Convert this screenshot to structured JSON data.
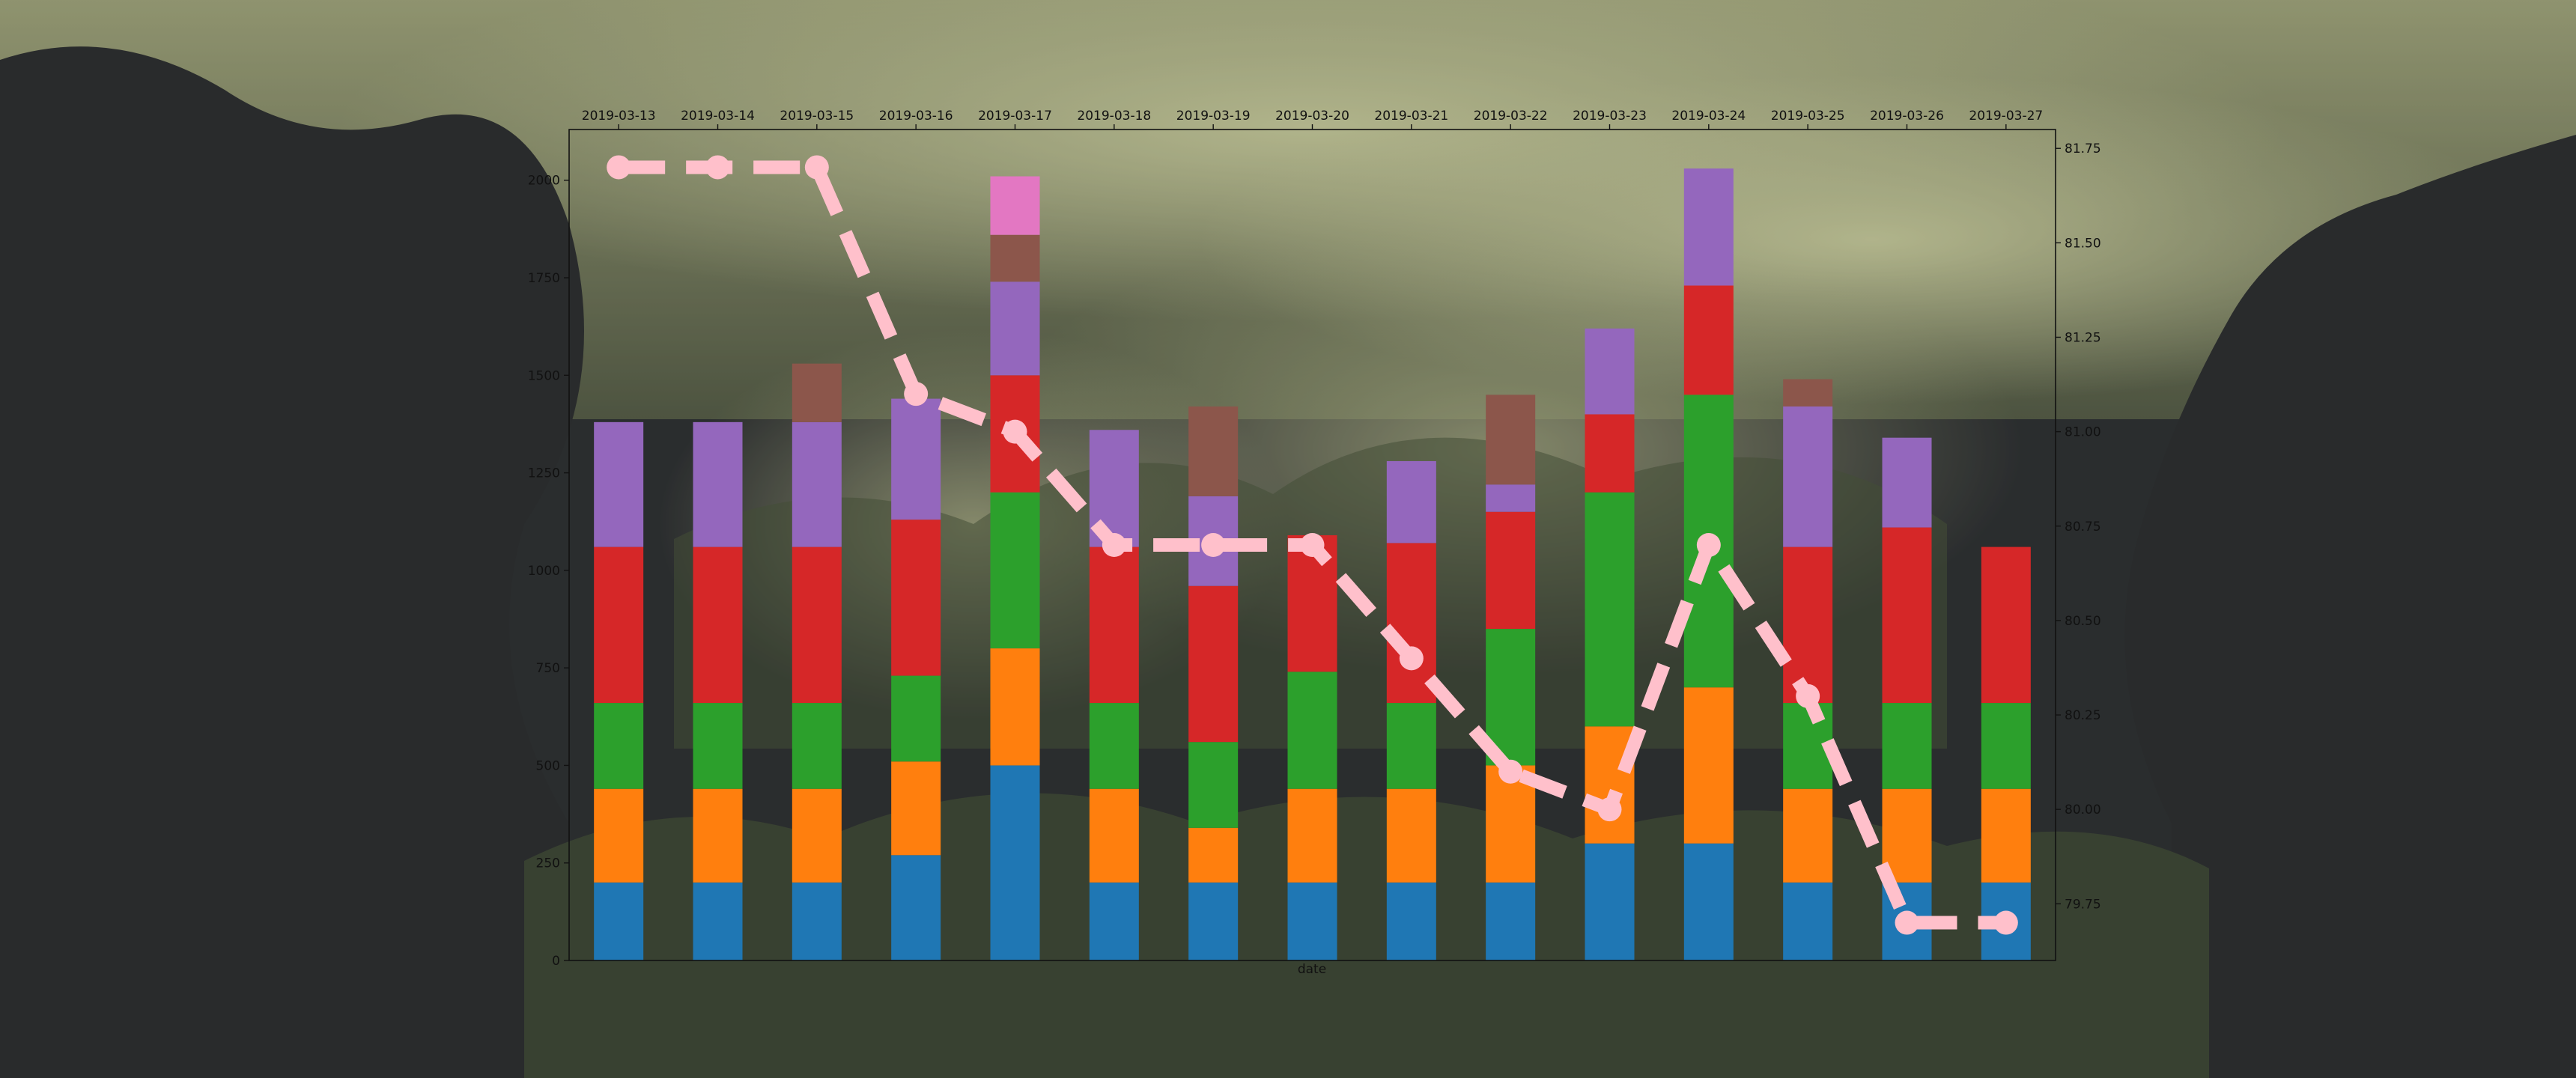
{
  "chart_data": {
    "type": "bar",
    "stacked": true,
    "xlabel": "date",
    "categories": [
      "2019-03-13",
      "2019-03-14",
      "2019-03-15",
      "2019-03-16",
      "2019-03-17",
      "2019-03-18",
      "2019-03-19",
      "2019-03-20",
      "2019-03-21",
      "2019-03-22",
      "2019-03-23",
      "2019-03-24",
      "2019-03-25",
      "2019-03-26",
      "2019-03-27"
    ],
    "ylim": [
      0,
      2130
    ],
    "y_ticks": [
      "0",
      "250",
      "500",
      "750",
      "1000",
      "1250",
      "1500",
      "1750",
      "2000"
    ],
    "series": [
      {
        "color": "#1f77b4",
        "values": [
          200,
          200,
          200,
          270,
          500,
          200,
          200,
          200,
          200,
          200,
          300,
          300,
          200,
          200,
          200
        ]
      },
      {
        "color": "#ff7f0e",
        "values": [
          240,
          240,
          240,
          240,
          300,
          240,
          140,
          240,
          240,
          300,
          300,
          400,
          240,
          240,
          240
        ]
      },
      {
        "color": "#2ca02c",
        "values": [
          220,
          220,
          220,
          220,
          400,
          220,
          220,
          300,
          220,
          350,
          600,
          750,
          220,
          220,
          220
        ]
      },
      {
        "color": "#d62728",
        "values": [
          400,
          400,
          400,
          400,
          300,
          400,
          400,
          350,
          410,
          300,
          200,
          280,
          400,
          450,
          400
        ]
      },
      {
        "color": "#9467bd",
        "values": [
          320,
          320,
          320,
          310,
          240,
          300,
          230,
          0,
          210,
          70,
          220,
          300,
          360,
          230,
          0
        ]
      },
      {
        "color": "#8c564b",
        "values": [
          0,
          0,
          150,
          0,
          120,
          0,
          230,
          0,
          0,
          230,
          0,
          0,
          70,
          0,
          0
        ]
      },
      {
        "color": "#e377c2",
        "values": [
          0,
          0,
          0,
          0,
          150,
          0,
          0,
          0,
          0,
          0,
          0,
          0,
          0,
          0,
          0
        ]
      }
    ],
    "secondary_y": {
      "type": "line",
      "style": "dashed",
      "marker": "circle",
      "color": "#ffc0cb",
      "ylim": [
        79.6,
        81.8
      ],
      "y_ticks": [
        "79.75",
        "80.00",
        "80.25",
        "80.50",
        "80.75",
        "81.00",
        "81.25",
        "81.50",
        "81.75"
      ],
      "values": [
        81.7,
        81.7,
        81.7,
        81.1,
        81.0,
        80.7,
        80.7,
        80.7,
        80.4,
        80.1,
        80.0,
        80.7,
        80.3,
        79.7,
        79.7
      ]
    },
    "grid": false,
    "legend": "none"
  }
}
